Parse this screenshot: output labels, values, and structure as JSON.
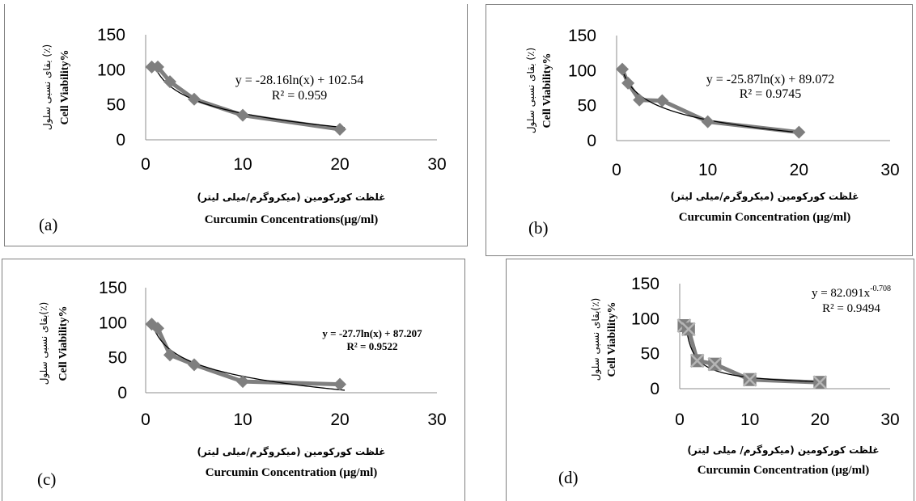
{
  "chart_data": [
    {
      "type": "scatter",
      "panel_label": "(a)",
      "x": [
        0.625,
        1.25,
        2.5,
        5,
        10,
        20
      ],
      "y": [
        104,
        104,
        83,
        58,
        35,
        15
      ],
      "xlim": [
        0,
        30
      ],
      "ylim": [
        0,
        150
      ],
      "xticks": [
        "0",
        "10",
        "20",
        "30"
      ],
      "yticks": [
        "0",
        "50",
        "100",
        "150"
      ],
      "xlabel_fa": "غلظت کورکومین (میکروگرم/میلی لیتر)",
      "xlabel_en": "Curcumin Concentrations(µg/ml)",
      "ylabel_fa": "بقای نسبی سلول (٪)",
      "ylabel_en": "Cell Viability%",
      "trendline": {
        "kind": "log",
        "a": -28.16,
        "b": 102.54,
        "equation": "y = -28.16ln(x) + 102.54",
        "r2": "R² = 0.959"
      },
      "series_color": "#7f7f7f",
      "trend_color": "#000000",
      "marker": "diamond"
    },
    {
      "type": "scatter",
      "panel_label": "(b)",
      "x": [
        0.625,
        1.25,
        2.5,
        5,
        10,
        20
      ],
      "y": [
        102,
        82,
        58,
        57,
        27,
        12
      ],
      "xlim": [
        0,
        30
      ],
      "ylim": [
        0,
        150
      ],
      "xticks": [
        "0",
        "10",
        "20",
        "30"
      ],
      "yticks": [
        "0",
        "50",
        "100",
        "150"
      ],
      "xlabel_fa": "غلظت کورکومین (میکروگرم/میلی لیتر)",
      "xlabel_en": "Curcumin Concentration (µg/ml)",
      "ylabel_fa": "بقای نسبی سلول (٪)",
      "ylabel_en": "Cell Viability%",
      "trendline": {
        "kind": "log",
        "a": -25.87,
        "b": 89.072,
        "equation": "y = -25.87ln(x) + 89.072",
        "r2": "R² = 0.9745"
      },
      "series_color": "#7f7f7f",
      "trend_color": "#000000",
      "marker": "diamond"
    },
    {
      "type": "scatter",
      "panel_label": "(c)",
      "x": [
        0.625,
        1.25,
        2.5,
        5,
        10,
        20
      ],
      "y": [
        98,
        92,
        54,
        40,
        16,
        12
      ],
      "xlim": [
        0,
        30
      ],
      "ylim": [
        0,
        150
      ],
      "xticks": [
        "0",
        "10",
        "20",
        "30"
      ],
      "yticks": [
        "0",
        "50",
        "100",
        "150"
      ],
      "xlabel_fa": "غلظت کورکومین (میکروگرم/میلی لیتر)",
      "xlabel_en": "Curcumin Concentration (µg/ml)",
      "ylabel_fa": "بقای نسبی سلول(٪)",
      "ylabel_en": "Cell Viability%",
      "trendline": {
        "kind": "log",
        "a": -27.7,
        "b": 87.207,
        "equation": "y = -27.7ln(x) + 87.207",
        "r2": "R² = 0.9522"
      },
      "series_color": "#7f7f7f",
      "trend_color": "#000000",
      "marker": "diamond"
    },
    {
      "type": "scatter",
      "panel_label": "(d)",
      "x": [
        0.625,
        1.25,
        2.5,
        5,
        10,
        20
      ],
      "y": [
        90,
        85,
        40,
        35,
        13,
        9
      ],
      "xlim": [
        0,
        30
      ],
      "ylim": [
        0,
        150
      ],
      "xticks": [
        "0",
        "10",
        "20",
        "30"
      ],
      "yticks": [
        "0",
        "50",
        "100",
        "150"
      ],
      "xlabel_fa": "غلظت کورکومین (میکروگرم/ میلی لیتر)",
      "xlabel_en": "Curcumin  Concentration (µg/ml)",
      "ylabel_fa": "بقای نسبی سلول(٪)",
      "ylabel_en": "Cell Viability%",
      "trendline": {
        "kind": "power",
        "a": 82.091,
        "b": -0.708,
        "equation_base": "y = 82.091x",
        "equation_exp": "-0.708",
        "r2": "R² = 0.9494"
      },
      "series_color": "#7f7f7f",
      "trend_color": "#000000",
      "marker": "square-x"
    }
  ]
}
